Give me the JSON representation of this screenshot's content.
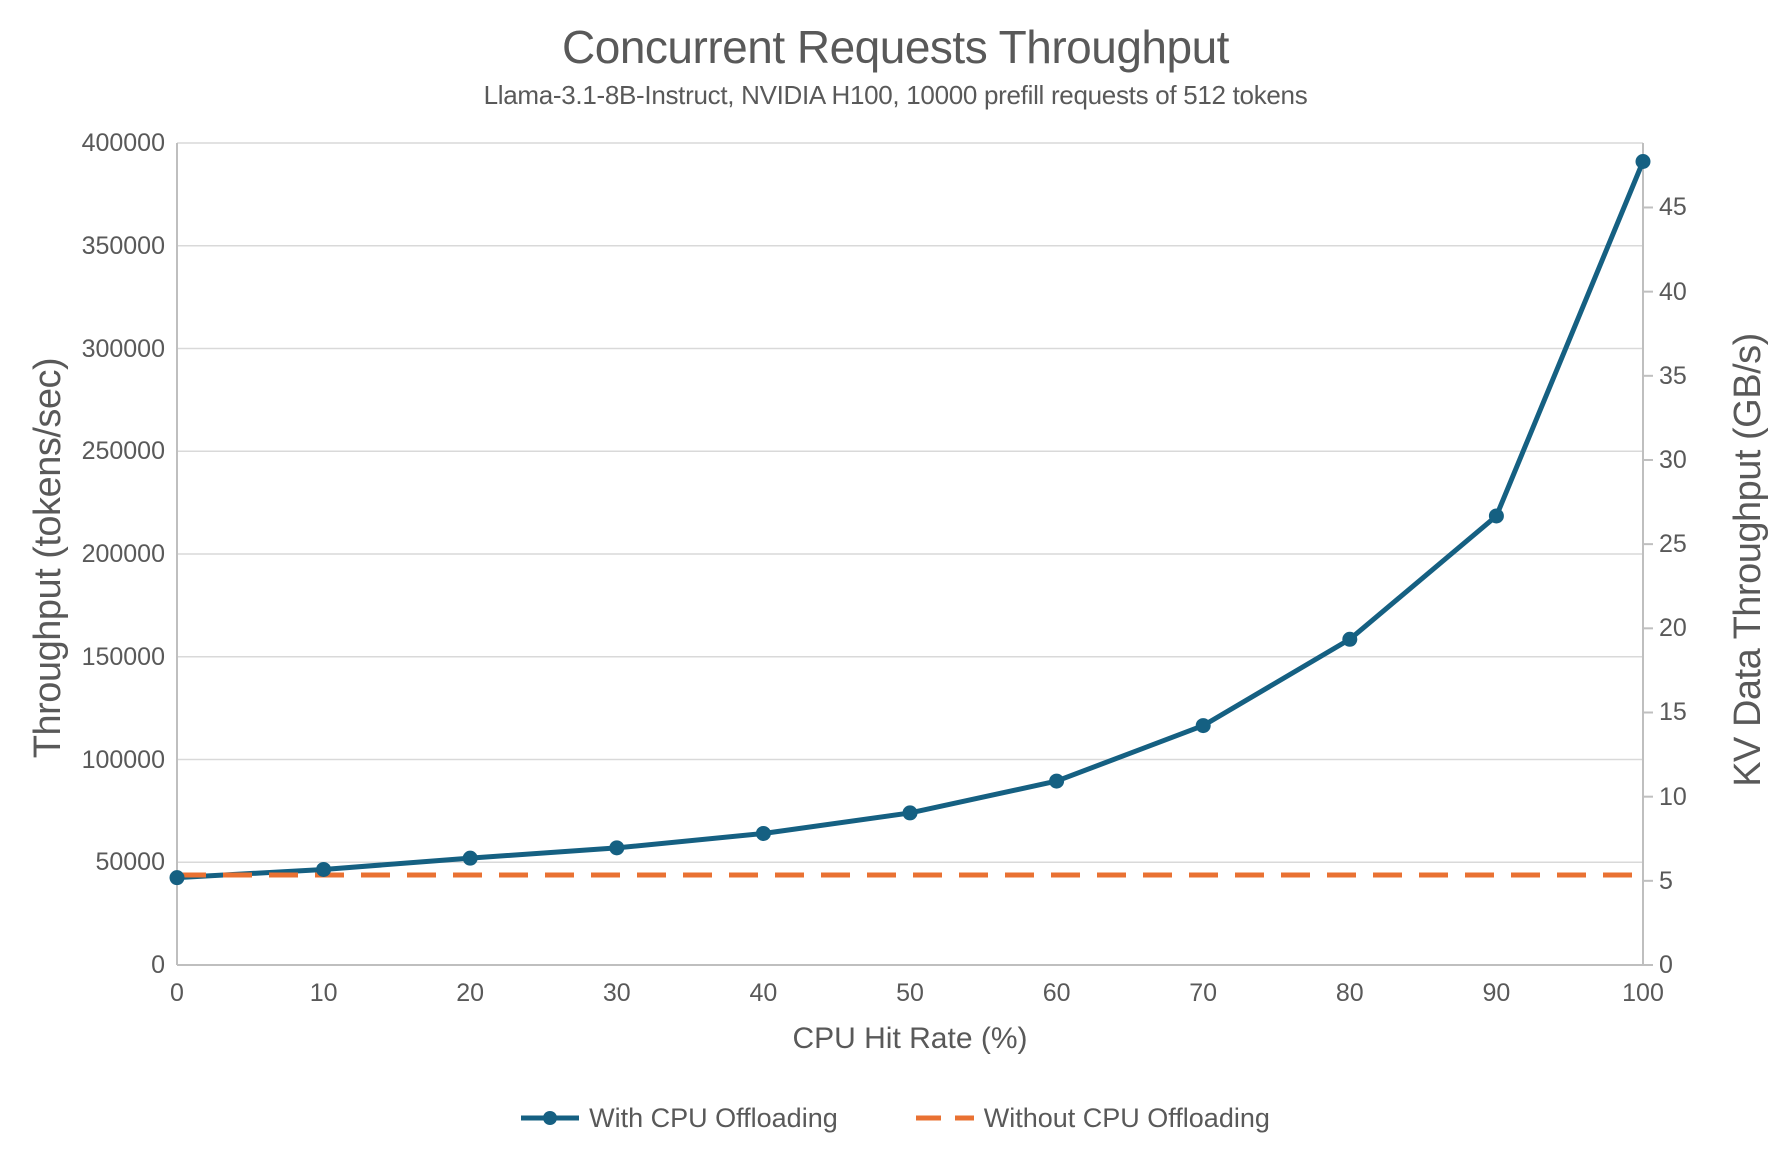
{
  "header": {
    "title": "Concurrent Requests Throughput",
    "subtitle": "Llama-3.1-8B-Instruct, NVIDIA H100, 10000 prefill requests of 512 tokens"
  },
  "chart_data": {
    "type": "line",
    "x": [
      0,
      10,
      20,
      30,
      40,
      50,
      60,
      70,
      80,
      90,
      100
    ],
    "x_tick_labels": [
      "0",
      "10",
      "20",
      "30",
      "40",
      "50",
      "60",
      "70",
      "80",
      "90",
      "100"
    ],
    "xlabel": "CPU Hit Rate (%)",
    "left_axis": {
      "label": "Throughput (tokens/sec)",
      "min": 0,
      "max": 400000,
      "tick_step": 50000,
      "tick_labels": [
        "400000",
        "350000",
        "300000",
        "250000",
        "200000",
        "150000",
        "100000",
        "50000",
        "0"
      ]
    },
    "right_axis": {
      "label": "KV Data Throughput (GB/s)",
      "min": 0,
      "max": 48.83,
      "tick_step": 5,
      "tick_labels": [
        "45",
        "40",
        "35",
        "30",
        "25",
        "20",
        "15",
        "10",
        "5",
        "0"
      ]
    },
    "series": [
      {
        "name": "With CPU Offloading",
        "color": "#156082",
        "line_style": "solid",
        "marker": "circle",
        "values": [
          42500,
          46500,
          52000,
          57000,
          64000,
          74000,
          89500,
          116500,
          158500,
          218500,
          391000
        ]
      },
      {
        "name": "Without CPU Offloading",
        "color": "#E97132",
        "line_style": "dashed",
        "marker": "none",
        "values": [
          43800,
          43800,
          43800,
          43800,
          43800,
          43800,
          43800,
          43800,
          43800,
          43800,
          43800
        ]
      }
    ],
    "grid": "horizontal-major",
    "legend_position": "bottom",
    "colors": {
      "text": "#595959",
      "gridline": "#D9D9D9",
      "axis_line": "#BFBFBF",
      "background": "#FFFFFF"
    }
  }
}
